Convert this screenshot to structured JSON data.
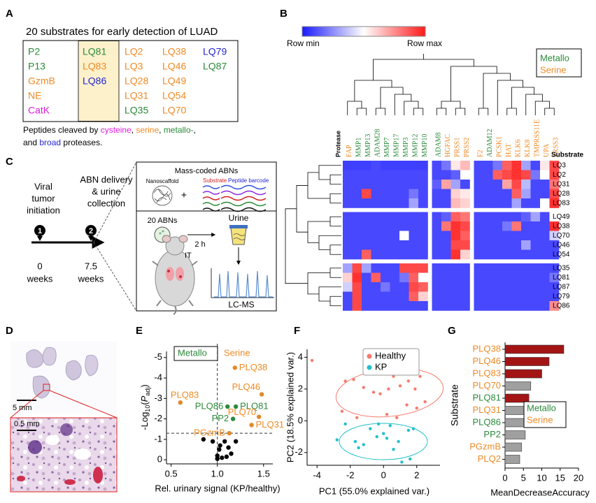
{
  "panel_labels": [
    "A",
    "B",
    "C",
    "D",
    "E",
    "F",
    "G"
  ],
  "class_colors": {
    "cysteine": "#e01ee0",
    "serine": "#f08a24",
    "metallo": "#2a8a3a",
    "broad": "#2424d4"
  },
  "panel_a": {
    "title": "20 substrates for early detection of LUAD",
    "substrates": [
      [
        "P2",
        "P13",
        "GzmB",
        "NE",
        "CatK"
      ],
      [
        "LQ81",
        "LQ83",
        "LQ86"
      ],
      [
        "LQ2",
        "LQ3",
        "LQ28",
        "LQ31",
        "LQ35"
      ],
      [
        "LQ38",
        "LQ46",
        "LQ49",
        "LQ54",
        "LQ70"
      ],
      [
        "LQ79",
        "LQ87"
      ]
    ],
    "substrate_classes": [
      [
        "metallo",
        "metallo",
        "serine",
        "serine",
        "cysteine"
      ],
      [
        "metallo",
        "serine",
        "broad"
      ],
      [
        "serine",
        "serine",
        "serine",
        "serine",
        "metallo"
      ],
      [
        "serine",
        "serine",
        "serine",
        "serine",
        "serine"
      ],
      [
        "broad",
        "metallo"
      ]
    ],
    "caption": [
      [
        {
          "text": "Peptides cleaved by "
        },
        {
          "text": "cysteine",
          "class": "cysteine"
        },
        {
          "text": ", "
        },
        {
          "text": "serine",
          "class": "serine"
        },
        {
          "text": ", "
        },
        {
          "text": "metallo-",
          "class": "metallo"
        },
        {
          "text": ","
        }
      ],
      [
        {
          "text": "and "
        },
        {
          "text": "broad",
          "class": "broad"
        },
        {
          "text": " proteases."
        }
      ]
    ]
  },
  "panel_b": {
    "colorbar_min": "Row min",
    "colorbar_max": "Row max",
    "legend": [
      "Metallo",
      "Serine"
    ],
    "legend_classes": [
      "metallo",
      "serine"
    ],
    "protease_label": "Protease",
    "substrate_label": "Substrate"
  },
  "panel_c": {
    "timeline_labels": [
      [
        "Viral",
        "tumor",
        "initiation"
      ],
      [
        "ABN delivery",
        "& urine",
        "collection"
      ]
    ],
    "steps": [
      "1",
      "2"
    ],
    "times": [
      [
        "0",
        "weeks"
      ],
      [
        "7.5",
        "weeks"
      ]
    ],
    "box_title": "Mass-coded ABNs",
    "nanoscaffold": "Nanoscaffold",
    "plus": "+",
    "substrate": "Substrate",
    "barcode": "Peptide barcode",
    "abns": "20 ABNs",
    "it": "IT",
    "time": "2 h",
    "urine": "Urine",
    "lcms": "LC-MS"
  },
  "panel_d": {
    "scale_top": "5 mm",
    "scale_bottom": "0.5 mm"
  },
  "chart_data": [
    {
      "type": "heatmap",
      "columns": [
        "FAP",
        "MMP1",
        "MMP13",
        "ADAM28",
        "MMP7",
        "MMP17",
        "MMP3",
        "MMP12",
        "MMP10",
        "ADAM8",
        "HGFAC",
        "PRSS1",
        "PRSS2",
        "F2",
        "ADAM12",
        "PCSK1",
        "HAT",
        "KLK6",
        "KLK8",
        "TMPRSS11E",
        "UPA",
        "PRSS3"
      ],
      "column_classes": [
        "serine",
        "metallo",
        "metallo",
        "metallo",
        "metallo",
        "metallo",
        "metallo",
        "metallo",
        "metallo",
        "metallo",
        "serine",
        "serine",
        "serine",
        "serine",
        "metallo",
        "serine",
        "serine",
        "serine",
        "serine",
        "serine",
        "serine",
        "serine"
      ],
      "column_groups": [
        9,
        4,
        9
      ],
      "rows": [
        "LQ3",
        "LQ2",
        "LQ31",
        "LQ28",
        "LQ83",
        "LQ49",
        "LQ38",
        "LQ70",
        "LQ46",
        "LQ54",
        "LQ35",
        "LQ81",
        "LQ87",
        "LQ79",
        "LQ86"
      ],
      "row_groups": [
        5,
        5,
        5
      ],
      "colormap": [
        "#1a1aff",
        "#ffffff",
        "#ff1a1a"
      ],
      "values": [
        [
          0.08,
          0.08,
          0.08,
          0.1,
          0.08,
          0.08,
          0.08,
          0.08,
          0.08,
          0.1,
          0.2,
          0.55,
          0.65,
          0.1,
          0.1,
          0.2,
          0.85,
          0.95,
          0.3,
          0.1,
          0.55,
          0.9
        ],
        [
          0.1,
          0.1,
          0.1,
          0.1,
          0.1,
          0.1,
          0.1,
          0.1,
          0.1,
          0.1,
          0.1,
          0.15,
          0.5,
          0.1,
          0.1,
          0.85,
          0.9,
          0.95,
          0.9,
          0.2,
          0.5,
          0.9
        ],
        [
          0.1,
          0.1,
          0.1,
          0.1,
          0.1,
          0.1,
          0.1,
          0.1,
          0.1,
          0.15,
          0.7,
          0.3,
          0.1,
          0.1,
          0.1,
          0.1,
          0.7,
          0.9,
          0.35,
          0.1,
          0.1,
          0.8
        ],
        [
          0.1,
          0.1,
          0.9,
          0.1,
          0.1,
          0.1,
          0.1,
          0.2,
          0.1,
          0.1,
          0.1,
          0.6,
          0.55,
          0.1,
          0.1,
          0.1,
          0.1,
          0.85,
          0.3,
          0.1,
          0.1,
          0.9
        ],
        [
          0.1,
          0.1,
          0.1,
          0.1,
          0.1,
          0.1,
          0.1,
          0.3,
          0.1,
          0.1,
          0.1,
          0.65,
          0.6,
          0.1,
          0.1,
          0.1,
          0.1,
          0.3,
          0.1,
          0.1,
          0.5,
          0.95
        ],
        [
          0.1,
          0.1,
          0.1,
          0.1,
          0.1,
          0.1,
          0.1,
          0.1,
          0.1,
          0.1,
          0.15,
          0.85,
          0.8,
          0.1,
          0.1,
          0.1,
          0.1,
          0.1,
          0.15,
          0.3,
          0.1,
          0.5
        ],
        [
          0.1,
          0.1,
          0.1,
          0.1,
          0.1,
          0.1,
          0.1,
          0.1,
          0.1,
          0.1,
          0.8,
          0.95,
          0.9,
          0.1,
          0.1,
          0.1,
          0.2,
          0.8,
          0.1,
          0.1,
          0.1,
          0.95
        ],
        [
          0.1,
          0.1,
          0.1,
          0.1,
          0.1,
          0.1,
          0.5,
          0.1,
          0.1,
          0.1,
          0.1,
          0.95,
          0.85,
          0.1,
          0.1,
          0.1,
          0.1,
          0.1,
          0.1,
          0.1,
          0.1,
          0.4
        ],
        [
          0.1,
          0.1,
          0.1,
          0.1,
          0.1,
          0.1,
          0.1,
          0.1,
          0.1,
          0.1,
          0.1,
          0.9,
          0.9,
          0.1,
          0.1,
          0.1,
          0.1,
          0.1,
          0.3,
          0.1,
          0.1,
          0.1
        ],
        [
          0.1,
          0.1,
          0.85,
          0.1,
          0.1,
          0.1,
          0.1,
          0.1,
          0.1,
          0.1,
          0.1,
          0.95,
          0.6,
          0.1,
          0.1,
          0.1,
          0.1,
          0.1,
          0.1,
          0.1,
          0.1,
          0.1
        ],
        [
          0.3,
          0.9,
          0.3,
          0.1,
          0.1,
          0.1,
          0.9,
          0.9,
          0.9,
          0.1,
          0.1,
          0.1,
          0.1,
          0.1,
          0.1,
          0.1,
          0.1,
          0.1,
          0.1,
          0.1,
          0.1,
          0.1
        ],
        [
          0.6,
          0.95,
          0.1,
          0.85,
          0.1,
          0.1,
          0.2,
          0.85,
          0.5,
          0.1,
          0.1,
          0.1,
          0.1,
          0.1,
          0.1,
          0.1,
          0.1,
          0.1,
          0.1,
          0.1,
          0.1,
          0.2
        ],
        [
          0.4,
          0.9,
          0.1,
          0.1,
          0.2,
          0.1,
          0.1,
          0.9,
          0.85,
          0.1,
          0.1,
          0.1,
          0.1,
          0.1,
          0.1,
          0.1,
          0.1,
          0.1,
          0.1,
          0.1,
          0.1,
          0.1
        ],
        [
          0.1,
          0.9,
          0.1,
          0.1,
          0.1,
          0.1,
          0.1,
          0.85,
          0.6,
          0.1,
          0.1,
          0.1,
          0.1,
          0.1,
          0.1,
          0.1,
          0.1,
          0.1,
          0.1,
          0.1,
          0.1,
          0.1
        ],
        [
          0.1,
          0.9,
          0.1,
          0.1,
          0.1,
          0.1,
          0.1,
          0.1,
          0.1,
          0.1,
          0.1,
          0.1,
          0.1,
          0.1,
          0.1,
          0.1,
          0.1,
          0.1,
          0.1,
          0.1,
          0.1,
          0.75
        ]
      ]
    },
    {
      "type": "scatter",
      "legend": [
        "Metallo",
        "Serine"
      ],
      "legend_classes": [
        "metallo",
        "serine"
      ],
      "xlabel": "Rel. urinary signal (KP/healthy)",
      "ylabel_parts": [
        "-Log",
        "10",
        "(",
        "P",
        "adj",
        ")"
      ],
      "x": [
        1.19,
        1.48,
        0.6,
        1.11,
        1.2,
        1.17,
        1.45,
        1.37,
        1.13,
        1.0,
        1.02,
        1.05,
        1.08,
        1.12,
        1.15,
        0.95,
        0.85,
        1.2,
        1.1,
        1.0,
        1.03
      ],
      "y": [
        4.5,
        3.2,
        2.8,
        2.6,
        2.6,
        2.0,
        2.1,
        1.7,
        1.3,
        0.2,
        0.5,
        0.1,
        0.9,
        0.6,
        0.3,
        0.9,
        1.0,
        0.9,
        0.15,
        0.05,
        0.7
      ],
      "point_labels": [
        "PLQ38",
        "PLQ46",
        "PLQ83",
        "PLQ86",
        "PLQ81",
        "PP2",
        "PLQ70",
        "PLQ31",
        "PGzmB",
        null,
        null,
        null,
        null,
        null,
        null,
        null,
        null,
        null,
        null,
        null,
        null
      ],
      "point_colors": [
        "#e08a2a",
        "#e08a2a",
        "#e08a2a",
        "#2a8a3a",
        "#2a8a3a",
        "#2a8a3a",
        "#e08a2a",
        "#e08a2a",
        "#e08a2a",
        "#000000",
        "#000000",
        "#000000",
        "#000000",
        "#000000",
        "#000000",
        "#000000",
        "#000000",
        "#000000",
        "#000000",
        "#000000",
        "#000000"
      ],
      "label_colors": [
        "#f08a24",
        "#f08a24",
        "#f08a24",
        "#2a8a3a",
        "#2a8a3a",
        "#2a8a3a",
        "#f08a24",
        "#f08a24",
        "#f08a24"
      ],
      "xlim": [
        0.45,
        1.6
      ],
      "xticks": [
        0.5,
        {
          "value": 1,
          "label": "1.0"
        },
        1.5
      ],
      "ylim": [
        -0.2,
        5.3
      ],
      "yticks": [
        0,
        {
          "value": 1,
          "label": "-1"
        },
        {
          "value": 2,
          "label": "-2"
        },
        {
          "value": 3,
          "label": "-3"
        },
        {
          "value": 4,
          "label": "-4"
        },
        {
          "value": 5,
          "label": "-5"
        }
      ],
      "hline": 1.3,
      "vline": 1
    },
    {
      "type": "scatter",
      "xlabel": "PC1 (55.0% explained var.)",
      "ylabel": "PC2 (18.5% explained var.)",
      "series": [
        {
          "name": "Healthy",
          "color": "#f47c6c",
          "x": [
            -4.3,
            -2.3,
            -1.8,
            -1.2,
            -0.6,
            -0.2,
            0.3,
            0.6,
            1.0,
            1.5,
            1.9,
            2.2,
            2.5,
            2.0,
            0.2,
            -1.6,
            0.8,
            1.4,
            -2.5
          ],
          "y": [
            3.8,
            2.5,
            2.6,
            2.1,
            1.8,
            1.7,
            2.0,
            2.8,
            2.2,
            2.5,
            2.0,
            2.8,
            1.2,
            0.8,
            0.4,
            0.2,
            0.2,
            1.0,
            0.6
          ]
        },
        {
          "name": "KP",
          "color": "#22c0c8",
          "x": [
            -2.8,
            -2.3,
            -1.7,
            -1.5,
            -1.2,
            -0.8,
            -0.4,
            0.0,
            0.2,
            0.4,
            0.6,
            0.9,
            1.1,
            1.5,
            1.8,
            1.6,
            -0.3
          ],
          "y": [
            -1.2,
            -0.2,
            -1.3,
            -1.7,
            -1.5,
            -0.5,
            -1.0,
            -0.8,
            -1.1,
            -0.3,
            -1.8,
            -1.3,
            -2.6,
            -0.6,
            -0.5,
            -2.4,
            -0.2
          ]
        }
      ],
      "xlim": [
        -4.6,
        3.4
      ],
      "xticks": [
        -4,
        -2,
        0,
        2
      ],
      "ylim": [
        -2.8,
        4.5
      ],
      "yticks": [
        -2,
        0,
        2,
        4
      ],
      "legend": "upper right"
    },
    {
      "type": "bar",
      "orientation": "horizontal",
      "categories": [
        "PLQ38",
        "PLQ46",
        "PLQ83",
        "PLQ70",
        "PLQ81",
        "PLQ31",
        "PLQ86",
        "PP2",
        "PGzmB",
        "PLQ2"
      ],
      "values": [
        16,
        12,
        10,
        7,
        6.5,
        6,
        6,
        5.5,
        4.5,
        4
      ],
      "colors": [
        "#a31515",
        "#a31515",
        "#a31515",
        "#a0a0a0",
        "#a31515",
        "#a0a0a0",
        "#a0a0a0",
        "#a0a0a0",
        "#a0a0a0",
        "#a0a0a0"
      ],
      "label_colors": [
        "#f08a24",
        "#f08a24",
        "#f08a24",
        "#f08a24",
        "#2a8a3a",
        "#f08a24",
        "#2a8a3a",
        "#2a8a3a",
        "#f08a24",
        "#f08a24"
      ],
      "xlim": [
        0,
        20
      ],
      "xticks": [
        0,
        5,
        10,
        15,
        20
      ],
      "xlabel": "MeanDecreaseAccuracy",
      "ylabel": "Substrate",
      "legend": [
        "Metallo",
        "Serine"
      ],
      "legend_classes": [
        "metallo",
        "serine"
      ]
    }
  ]
}
